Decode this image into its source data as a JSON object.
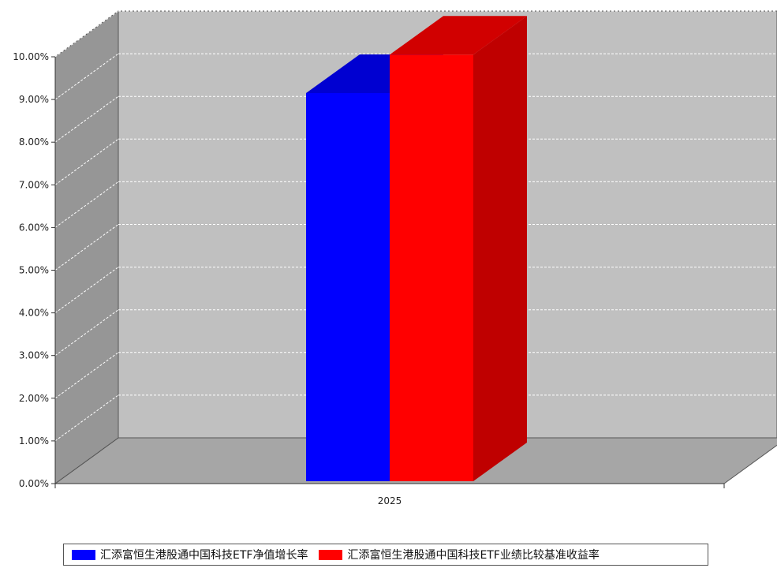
{
  "chart_data": {
    "type": "bar",
    "categories": [
      "2025"
    ],
    "series": [
      {
        "name": "汇添富恒生港股通中国科技ETF净值增长率",
        "color": "#0000ff",
        "values": [
          9.15
        ]
      },
      {
        "name": "汇添富恒生港股通中国科技ETF业绩比较基准收益率",
        "color": "#ff0000",
        "values": [
          10.05
        ]
      }
    ],
    "ylim": [
      0,
      10
    ],
    "yticks": [
      "0.00%",
      "1.00%",
      "2.00%",
      "3.00%",
      "4.00%",
      "5.00%",
      "6.00%",
      "7.00%",
      "8.00%",
      "9.00%",
      "10.00%"
    ],
    "grid": true,
    "legend_position": "bottom",
    "style": "3d",
    "colors": {
      "wall": "#c0c0c0",
      "side_wall": "#969696",
      "floor": "#a6a6a6",
      "gridline": "#ffffff"
    }
  }
}
